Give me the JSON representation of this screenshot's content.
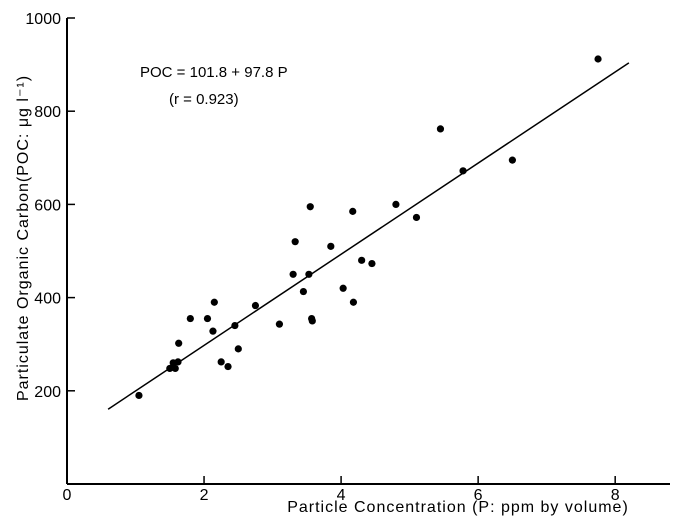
{
  "chart_data": {
    "type": "scatter",
    "title": "",
    "xlabel": "Particle  Concentration (P: ppm  by  volume)",
    "ylabel": "Particulate  Organic  Carbon(POC: μg l⁻¹)",
    "xlim": [
      0,
      8.8
    ],
    "ylim": [
      0,
      1000
    ],
    "x_ticks": [
      0,
      2,
      4,
      6,
      8
    ],
    "y_ticks": [
      200,
      400,
      600,
      800,
      1000
    ],
    "x_tick_labels": [
      "0",
      "2",
      "4",
      "6",
      "8"
    ],
    "y_tick_labels": [
      "200",
      "400",
      "600",
      "800",
      "1000"
    ],
    "grid": false,
    "annotation": {
      "equation": "POC = 101.8 + 97.8 P",
      "correlation": "(r = 0.923)"
    },
    "regression": {
      "intercept": 101.8,
      "slope": 97.8,
      "x_range": [
        0.6,
        8.2
      ]
    },
    "series": [
      {
        "points": [
          [
            1.05,
            190
          ],
          [
            1.5,
            248
          ],
          [
            1.55,
            260
          ],
          [
            1.58,
            248
          ],
          [
            1.62,
            262
          ],
          [
            1.63,
            302
          ],
          [
            1.8,
            355
          ],
          [
            2.05,
            355
          ],
          [
            2.13,
            328
          ],
          [
            2.15,
            390
          ],
          [
            2.25,
            262
          ],
          [
            2.35,
            252
          ],
          [
            2.45,
            340
          ],
          [
            2.5,
            290
          ],
          [
            2.75,
            383
          ],
          [
            3.1,
            343
          ],
          [
            3.3,
            450
          ],
          [
            3.33,
            520
          ],
          [
            3.45,
            413
          ],
          [
            3.53,
            450
          ],
          [
            3.55,
            595
          ],
          [
            3.57,
            355
          ],
          [
            3.58,
            350
          ],
          [
            3.85,
            510
          ],
          [
            4.03,
            420
          ],
          [
            4.17,
            585
          ],
          [
            4.18,
            390
          ],
          [
            4.3,
            480
          ],
          [
            4.45,
            473
          ],
          [
            4.8,
            600
          ],
          [
            5.1,
            572
          ],
          [
            5.45,
            762
          ],
          [
            5.78,
            672
          ],
          [
            6.5,
            695
          ],
          [
            7.75,
            912
          ]
        ]
      }
    ]
  }
}
